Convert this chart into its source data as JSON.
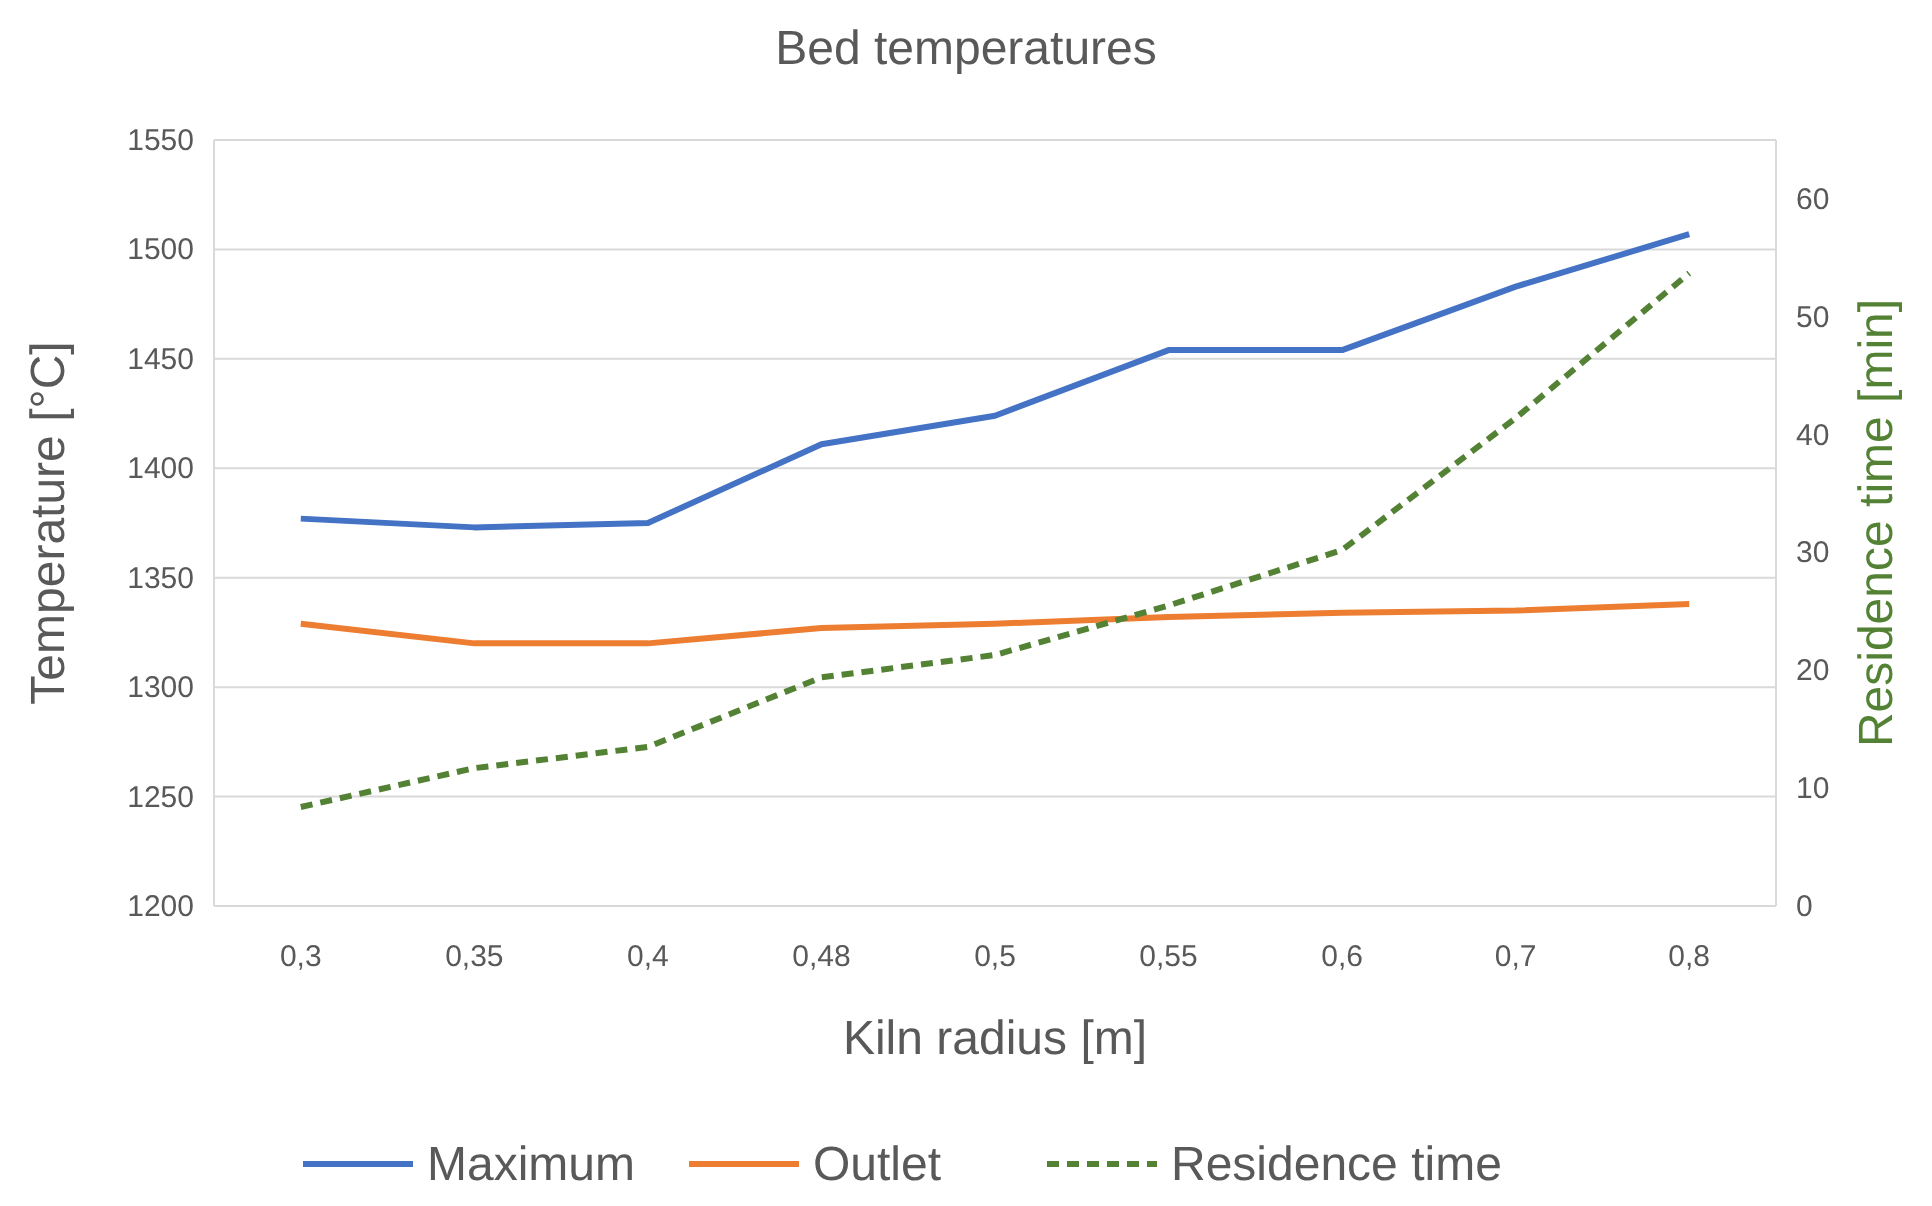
{
  "chart_data": {
    "type": "line",
    "title": "Bed temperatures",
    "xlabel": "Kiln radius [m]",
    "ylabel": "Temperature [°C]",
    "y2label": "Residence time [min]",
    "categories": [
      "0,3",
      "0,35",
      "0,4",
      "0,48",
      "0,5",
      "0,55",
      "0,6",
      "0,7",
      "0,8"
    ],
    "series": [
      {
        "name": "Maximum",
        "color": "#4472c4",
        "values": [
          1377,
          1373,
          1375,
          1411,
          1424,
          1454,
          1454,
          1483,
          1507
        ]
      },
      {
        "name": "Outlet",
        "color": "#ed7d31",
        "values": [
          1329,
          1320,
          1320,
          1327,
          1329,
          1332,
          1334,
          1335,
          1338
        ]
      },
      {
        "name": "Residence time",
        "color": "#548235",
        "axis": "y2",
        "line_style": "dashed",
        "values": [
          8.4,
          11.7,
          13.5,
          19.4,
          21.3,
          25.5,
          30.2,
          41.4,
          53.7
        ]
      }
    ],
    "ylim": [
      1200,
      1550
    ],
    "yticks": [
      1200,
      1250,
      1300,
      1350,
      1400,
      1450,
      1500,
      1550
    ],
    "y2lim": [
      0,
      65
    ],
    "y2ticks": [
      0,
      10,
      20,
      30,
      40,
      50,
      60
    ],
    "grid": "y",
    "legend": "bottom",
    "marker": "none"
  }
}
